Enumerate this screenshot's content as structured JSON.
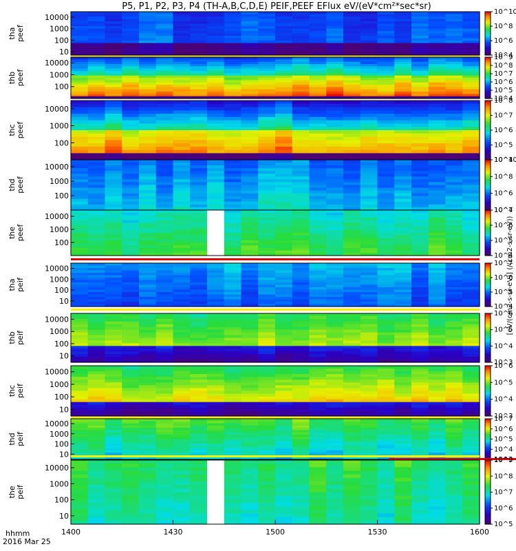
{
  "chart_data": {
    "type": "heatmap",
    "title": "P5, P1, P2, P3, P4 (TH-A,B,C,D,E) PEIF,PEEF EFlux eV/(eV*cm²*sec*sr)",
    "xlabel": "hhmm",
    "date_label": "2016 Mar 25",
    "x_ticks": [
      "1400",
      "1430",
      "1500",
      "1530",
      "1600"
    ],
    "x_range": [
      "14:00",
      "16:00"
    ],
    "ylabel_units": "eV",
    "y_scale": "log",
    "colorbar_label": "[eV/(cm2-s-sr-eV)] (/(cm2-s-sr-eV))",
    "colormap": "rainbow (purple-blue-cyan-green-yellow-red)",
    "panels": [
      {
        "name": "tha peef",
        "label_line1": "tha",
        "label_line2": "peef",
        "yticks": [
          "10000",
          "1000",
          "100",
          "10"
        ],
        "ylim": [
          5,
          30000
        ],
        "cbar_ticks": [
          "10^10",
          "10^8",
          "10^6",
          "10^4"
        ],
        "cbar_range": [
          10000.0,
          10000000000.0
        ],
        "flag_bar_after": [
          "yellow"
        ]
      },
      {
        "name": "thb peef",
        "label_line1": "thb",
        "label_line2": "peef",
        "yticks": [
          "10000",
          "1000",
          "100"
        ],
        "ylim": [
          10,
          30000
        ],
        "cbar_ticks": [
          "10^9",
          "10^8",
          "10^7",
          "10^6",
          "10^5",
          "10^4"
        ],
        "cbar_range": [
          10000.0,
          1000000000.0
        ]
      },
      {
        "name": "thc peef",
        "label_line1": "thc",
        "label_line2": "peef",
        "yticks": [
          "10000",
          "1000",
          "100"
        ],
        "ylim": [
          10,
          30000
        ],
        "cbar_ticks": [
          "10^8",
          "10^7",
          "10^6",
          "10^5",
          "10^4"
        ],
        "cbar_range": [
          10000.0,
          100000000.0
        ]
      },
      {
        "name": "thd peef",
        "label_line1": "thd",
        "label_line2": "peef",
        "yticks": [
          "10000",
          "1000",
          "100"
        ],
        "ylim": [
          10,
          30000
        ],
        "cbar_ticks": [
          "10^10",
          "10^8",
          "10^6",
          "10^4"
        ],
        "cbar_range": [
          10000.0,
          10000000000.0
        ]
      },
      {
        "name": "the peef",
        "label_line1": "the",
        "label_line2": "peef",
        "yticks": [
          "10000",
          "1000",
          "100"
        ],
        "ylim": [
          10,
          30000
        ],
        "cbar_ticks": [
          "10^7",
          "10^6",
          "10^5",
          "10^4"
        ],
        "cbar_range": [
          10000.0,
          10000000.0
        ],
        "flag_bar_after": [
          "red"
        ]
      },
      {
        "name": "tha peif",
        "label_line1": "tha",
        "label_line2": "peif",
        "yticks": [
          "10000",
          "1000",
          "100",
          "10"
        ],
        "ylim": [
          3,
          30000
        ],
        "cbar_ticks": [
          "10^7",
          "10^6",
          "10^5",
          "10^4"
        ],
        "cbar_range": [
          10000.0,
          10000000.0
        ],
        "flag_bar_after": [
          "yellow"
        ]
      },
      {
        "name": "thb peif",
        "label_line1": "thb",
        "label_line2": "peif",
        "yticks": [
          "10000",
          "1000",
          "100",
          "10"
        ],
        "ylim": [
          3,
          30000
        ],
        "cbar_ticks": [
          "10^6",
          "10^5",
          "10^4",
          "10^3"
        ],
        "cbar_range": [
          1000.0,
          1000000.0
        ]
      },
      {
        "name": "thc peif",
        "label_line1": "thc",
        "label_line2": "peif",
        "yticks": [
          "10000",
          "1000",
          "100",
          "10"
        ],
        "ylim": [
          3,
          30000
        ],
        "cbar_ticks": [
          "10^6",
          "10^5",
          "10^4",
          "10^3"
        ],
        "cbar_range": [
          1000.0,
          1000000.0
        ],
        "flag_bar_after": [
          "yellow"
        ]
      },
      {
        "name": "thd peif",
        "label_line1": "thd",
        "label_line2": "peif",
        "yticks": [
          "10000",
          "1000",
          "100",
          "10"
        ],
        "ylim": [
          3,
          30000
        ],
        "cbar_ticks": [
          "10^7",
          "10^6",
          "10^5",
          "10^4",
          "10^3"
        ],
        "cbar_range": [
          1000.0,
          10000000.0
        ],
        "flag_bar_after": [
          "yellow",
          "red"
        ]
      },
      {
        "name": "the peif",
        "label_line1": "the",
        "label_line2": "peif",
        "yticks": [
          "10000",
          "1000",
          "100",
          "10"
        ],
        "ylim": [
          3,
          30000
        ],
        "cbar_ticks": [
          "10^9",
          "10^8",
          "10^7",
          "10^6",
          "10^5"
        ],
        "cbar_range": [
          100000.0,
          1000000000.0
        ]
      }
    ],
    "data_gap": {
      "panels": [
        "the peef",
        "the peif"
      ],
      "from": "14:38",
      "to": "14:46"
    },
    "grid": false,
    "legend": "none"
  }
}
